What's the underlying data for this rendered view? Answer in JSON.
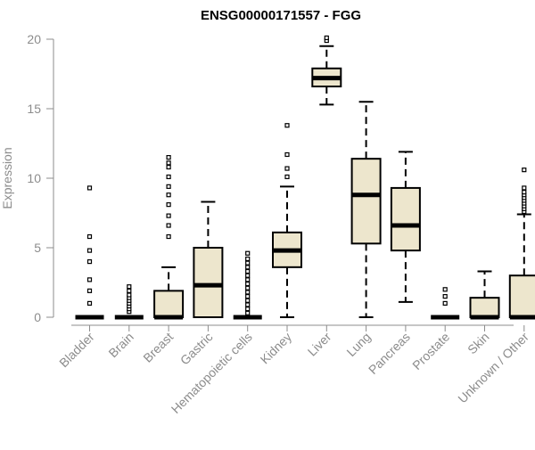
{
  "chart_data": {
    "type": "boxplot",
    "title": "ENSG00000171557 - FGG",
    "xlabel": "",
    "ylabel": "Expression",
    "ylim": [
      0,
      20
    ],
    "yticks": [
      0,
      5,
      10,
      15,
      20
    ],
    "grid": false,
    "box_fill": "#ede6cd",
    "box_stroke": "#000000",
    "categories": [
      "Bladder",
      "Brain",
      "Breast",
      "Gastric",
      "Hematopoietic cells",
      "Kidney",
      "Liver",
      "Lung",
      "Pancreas",
      "Prostate",
      "Skin",
      "Unknown / Other"
    ],
    "boxes": [
      {
        "q1": 0,
        "median": 0,
        "q3": 0,
        "whisker_low": 0,
        "whisker_high": 0,
        "outliers": [
          1.0,
          1.9,
          2.7,
          4.0,
          4.8,
          5.8,
          9.3
        ]
      },
      {
        "q1": 0,
        "median": 0,
        "q3": 0,
        "whisker_low": 0,
        "whisker_high": 0,
        "outliers": [
          0.4,
          0.6,
          0.8,
          1.0,
          1.2,
          1.4,
          1.6,
          1.9,
          2.2
        ]
      },
      {
        "q1": 0,
        "median": 0,
        "q3": 1.9,
        "whisker_low": 0,
        "whisker_high": 3.6,
        "outliers": [
          5.8,
          6.6,
          7.3,
          8.1,
          8.8,
          9.4,
          10.1,
          10.8,
          11.1,
          11.5
        ]
      },
      {
        "q1": 0,
        "median": 2.3,
        "q3": 5.0,
        "whisker_low": 0,
        "whisker_high": 8.3,
        "outliers": []
      },
      {
        "q1": 0,
        "median": 0,
        "q3": 0,
        "whisker_low": 0,
        "whisker_high": 0,
        "outliers": [
          0.3,
          0.6,
          0.9,
          1.2,
          1.5,
          1.8,
          2.1,
          2.4,
          2.7,
          3.0,
          3.3,
          3.6,
          3.9,
          4.2,
          4.6
        ]
      },
      {
        "q1": 3.6,
        "median": 4.8,
        "q3": 6.1,
        "whisker_low": 0,
        "whisker_high": 9.4,
        "outliers": [
          10.1,
          10.7,
          11.7,
          13.8
        ]
      },
      {
        "q1": 16.6,
        "median": 17.2,
        "q3": 17.9,
        "whisker_low": 15.3,
        "whisker_high": 19.5,
        "outliers": [
          19.9,
          20.1
        ]
      },
      {
        "q1": 5.3,
        "median": 8.8,
        "q3": 11.4,
        "whisker_low": 0,
        "whisker_high": 15.5,
        "outliers": []
      },
      {
        "q1": 4.8,
        "median": 6.6,
        "q3": 9.3,
        "whisker_low": 1.1,
        "whisker_high": 11.9,
        "outliers": []
      },
      {
        "q1": 0,
        "median": 0,
        "q3": 0,
        "whisker_low": 0,
        "whisker_high": 0,
        "outliers": [
          1.0,
          1.5,
          2.0
        ]
      },
      {
        "q1": 0,
        "median": 0,
        "q3": 1.4,
        "whisker_low": 0,
        "whisker_high": 3.3,
        "outliers": []
      },
      {
        "q1": 0,
        "median": 0,
        "q3": 3.0,
        "whisker_low": 0,
        "whisker_high": 7.4,
        "outliers": [
          7.6,
          7.8,
          8.0,
          8.2,
          8.4,
          8.6,
          8.8,
          9.0,
          9.3,
          10.6
        ]
      }
    ]
  }
}
